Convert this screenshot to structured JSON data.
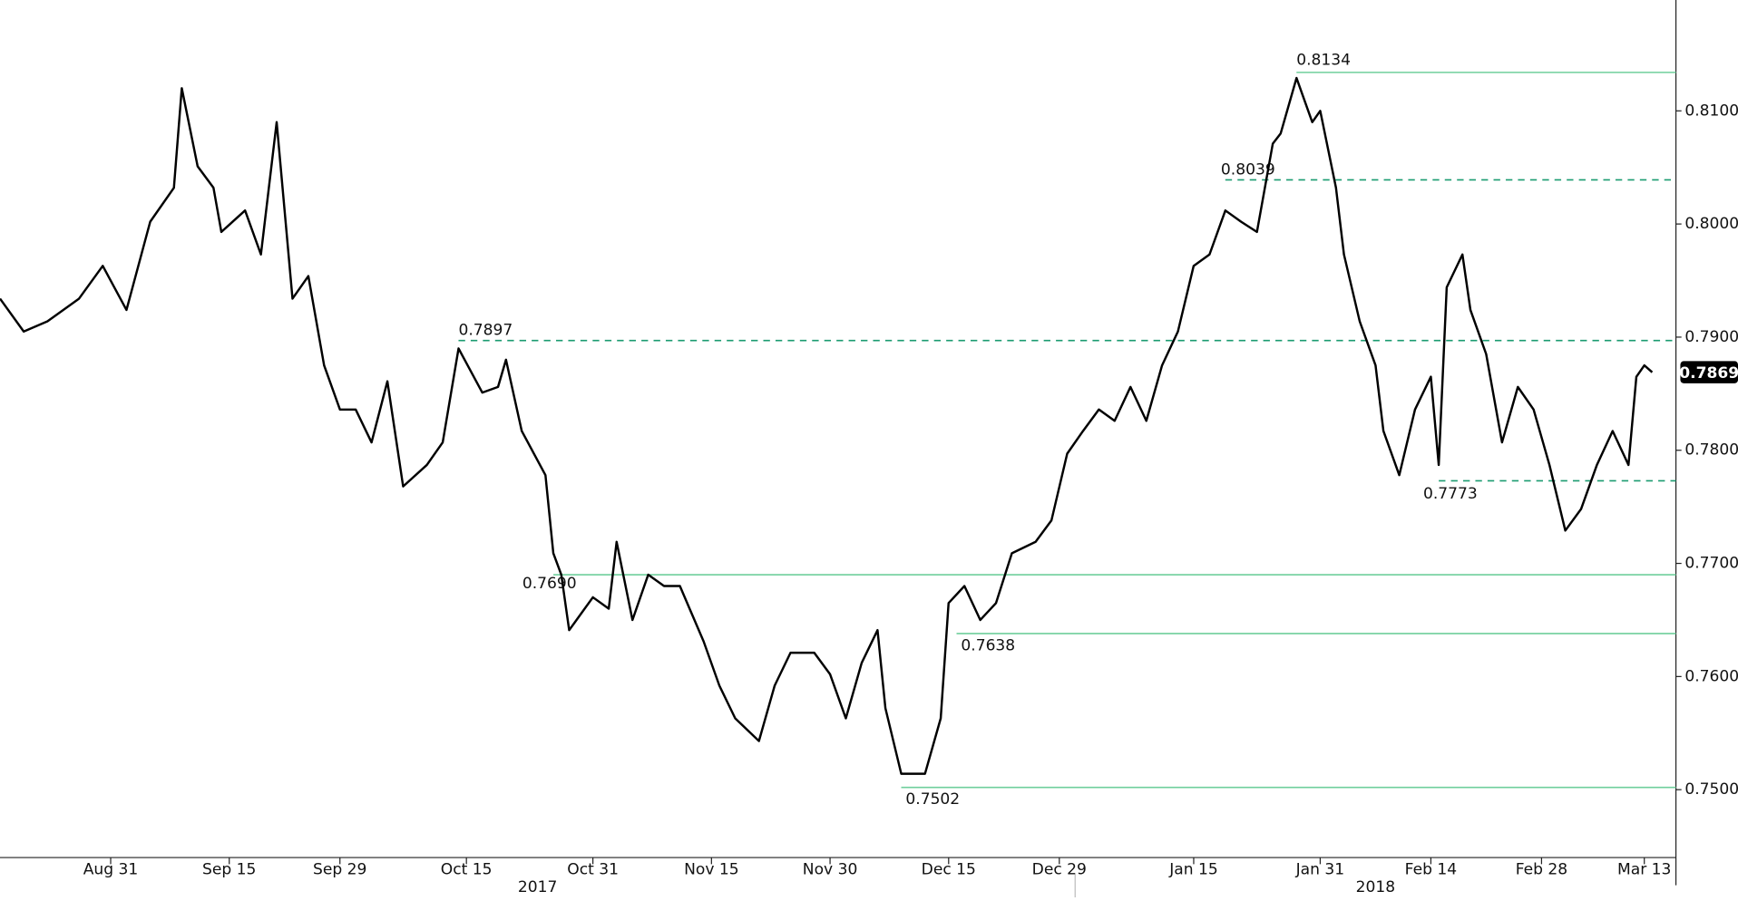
{
  "chart_data": {
    "type": "line",
    "xlim": [
      "2017-08-17",
      "2018-03-17"
    ],
    "xticks": [
      {
        "value": "2017-08-31",
        "label": "Aug 31"
      },
      {
        "value": "2017-09-15",
        "label": "Sep 15"
      },
      {
        "value": "2017-09-29",
        "label": "Sep 29"
      },
      {
        "value": "2017-10-15",
        "label": "Oct 15"
      },
      {
        "value": "2017-10-31",
        "label": "Oct 31"
      },
      {
        "value": "2017-11-15",
        "label": "Nov 15"
      },
      {
        "value": "2017-11-30",
        "label": "Nov 30"
      },
      {
        "value": "2017-12-15",
        "label": "Dec 15"
      },
      {
        "value": "2017-12-29",
        "label": "Dec 29"
      },
      {
        "value": "2018-01-15",
        "label": "Jan 15"
      },
      {
        "value": "2018-01-31",
        "label": "Jan 31"
      },
      {
        "value": "2018-02-14",
        "label": "Feb 14"
      },
      {
        "value": "2018-02-28",
        "label": "Feb 28"
      },
      {
        "value": "2018-03-13",
        "label": "Mar 13"
      }
    ],
    "year_labels": [
      "2017",
      "2018"
    ],
    "ylim": [
      0.744,
      0.8198
    ],
    "yticks": [
      {
        "value": 0.75,
        "label": "0.7500"
      },
      {
        "value": 0.76,
        "label": "0.7600"
      },
      {
        "value": 0.77,
        "label": "0.7700"
      },
      {
        "value": 0.78,
        "label": "0.7800"
      },
      {
        "value": 0.79,
        "label": "0.7900"
      },
      {
        "value": 0.8,
        "label": "0.8000"
      },
      {
        "value": 0.81,
        "label": "0.8100"
      }
    ],
    "series": [
      {
        "color": "#000000",
        "x": [
          "2017-08-17",
          "2017-08-20",
          "2017-08-23",
          "2017-08-27",
          "2017-08-30",
          "2017-09-02",
          "2017-09-05",
          "2017-09-08",
          "2017-09-09",
          "2017-09-11",
          "2017-09-13",
          "2017-09-14",
          "2017-09-17",
          "2017-09-19",
          "2017-09-21",
          "2017-09-23",
          "2017-09-25",
          "2017-09-27",
          "2017-09-29",
          "2017-10-01",
          "2017-10-03",
          "2017-10-05",
          "2017-10-07",
          "2017-10-10",
          "2017-10-12",
          "2017-10-14",
          "2017-10-17",
          "2017-10-19",
          "2017-10-20",
          "2017-10-22",
          "2017-10-25",
          "2017-10-26",
          "2017-10-27",
          "2017-10-28",
          "2017-10-31",
          "2017-11-02",
          "2017-11-03",
          "2017-11-05",
          "2017-11-07",
          "2017-11-09",
          "2017-11-11",
          "2017-11-14",
          "2017-11-16",
          "2017-11-18",
          "2017-11-21",
          "2017-11-23",
          "2017-11-25",
          "2017-11-28",
          "2017-11-30",
          "2017-12-02",
          "2017-12-04",
          "2017-12-06",
          "2017-12-07",
          "2017-12-09",
          "2017-12-12",
          "2017-12-14",
          "2017-12-15",
          "2017-12-17",
          "2017-12-19",
          "2017-12-21",
          "2017-12-23",
          "2017-12-26",
          "2017-12-28",
          "2017-12-30",
          "2018-01-01",
          "2018-01-03",
          "2018-01-05",
          "2018-01-07",
          "2018-01-09",
          "2018-01-11",
          "2018-01-13",
          "2018-01-15",
          "2018-01-17",
          "2018-01-19",
          "2018-01-21",
          "2018-01-23",
          "2018-01-25",
          "2018-01-26",
          "2018-01-28",
          "2018-01-30",
          "2018-01-31",
          "2018-02-02",
          "2018-02-03",
          "2018-02-05",
          "2018-02-07",
          "2018-02-08",
          "2018-02-10",
          "2018-02-12",
          "2018-02-14",
          "2018-02-15",
          "2018-02-16",
          "2018-02-18",
          "2018-02-19",
          "2018-02-21",
          "2018-02-23",
          "2018-02-25",
          "2018-02-27",
          "2018-03-01",
          "2018-03-03",
          "2018-03-05",
          "2018-03-07",
          "2018-03-09",
          "2018-03-11",
          "2018-03-12",
          "2018-03-13",
          "2018-03-14"
        ],
        "values": [
          0.7934,
          0.7905,
          0.7914,
          0.7934,
          0.7963,
          0.7924,
          0.8002,
          0.8032,
          0.812,
          0.8051,
          0.8032,
          0.7993,
          0.8012,
          0.7973,
          0.809,
          0.7934,
          0.7954,
          0.7875,
          0.7836,
          0.7836,
          0.7807,
          0.7861,
          0.7768,
          0.7787,
          0.7807,
          0.789,
          0.7851,
          0.7856,
          0.788,
          0.7817,
          0.7778,
          0.7709,
          0.769,
          0.7641,
          0.767,
          0.766,
          0.7719,
          0.765,
          0.769,
          0.768,
          0.768,
          0.7631,
          0.7592,
          0.7563,
          0.7543,
          0.7592,
          0.7621,
          0.7621,
          0.7602,
          0.7563,
          0.7612,
          0.7641,
          0.7572,
          0.7514,
          0.7514,
          0.7563,
          0.7665,
          0.768,
          0.765,
          0.7665,
          0.7709,
          0.7719,
          0.7738,
          0.7797,
          0.7817,
          0.7836,
          0.7826,
          0.7856,
          0.7826,
          0.7875,
          0.7905,
          0.7963,
          0.7973,
          0.8012,
          0.8002,
          0.7993,
          0.8071,
          0.808,
          0.8129,
          0.809,
          0.81,
          0.8032,
          0.7973,
          0.7914,
          0.7875,
          0.7817,
          0.7778,
          0.7836,
          0.7865,
          0.7787,
          0.7944,
          0.7973,
          0.7924,
          0.7885,
          0.7807,
          0.7856,
          0.7836,
          0.7787,
          0.7729,
          0.7748,
          0.7787,
          0.7817,
          0.7787,
          0.7865,
          0.7875,
          0.7869
        ]
      }
    ],
    "levels": {
      "values": [
        0.8134,
        0.8039,
        0.7897,
        0.769,
        0.7638,
        0.7502,
        0.7773
      ],
      "value_labels": [
        "0.8134",
        "0.8039",
        "0.7897",
        "0.7690",
        "0.7638",
        "0.7502",
        "0.7773"
      ],
      "starts": [
        "2018-01-28",
        "2018-01-19",
        "2017-10-14",
        "2017-10-26",
        "2017-12-16",
        "2017-12-09",
        "2018-02-15"
      ],
      "styles": [
        "solid",
        "dashed",
        "dashed",
        "solid",
        "solid",
        "solid",
        "dashed"
      ],
      "colors": [
        "#6fcf9c",
        "#1a9b70",
        "#1a9b70",
        "#6fcf9c",
        "#6fcf9c",
        "#6fcf9c",
        "#1a9b70"
      ]
    },
    "last_price": {
      "value": 0.7869,
      "label": "0.7869"
    }
  }
}
